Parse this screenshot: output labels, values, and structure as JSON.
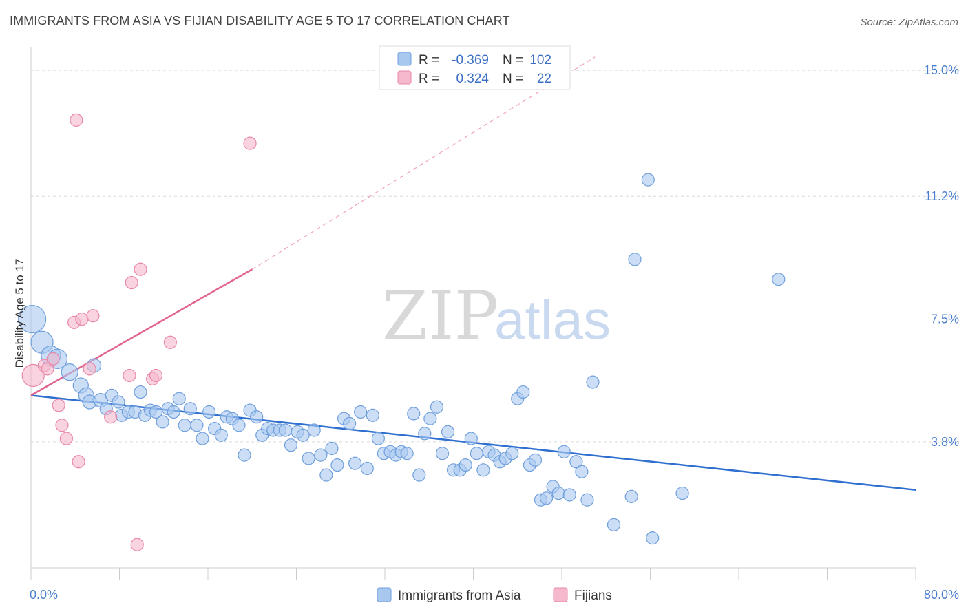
{
  "title": "IMMIGRANTS FROM ASIA VS FIJIAN DISABILITY AGE 5 TO 17 CORRELATION CHART",
  "source": "Source: ZipAtlas.com",
  "watermark": {
    "zip": "ZIP",
    "atlas": "atlas"
  },
  "legend": {
    "rows": [
      {
        "r_label": "R =",
        "r_value": "-0.369",
        "n_label": "N =",
        "n_value": "102"
      },
      {
        "r_label": "R =",
        "r_value": "0.324",
        "n_label": "N =",
        "n_value": "22"
      }
    ]
  },
  "chart_data": {
    "type": "scatter",
    "ylabel": "Disability Age 5 to 17",
    "xlim": [
      0,
      80
    ],
    "ylim": [
      0,
      15.5
    ],
    "x_tick_labels": [
      "0.0%",
      "80.0%"
    ],
    "y_ticks": [
      3.8,
      7.5,
      11.2,
      15.0
    ],
    "y_tick_labels": [
      "3.8%",
      "7.5%",
      "11.2%",
      "15.0%"
    ],
    "grid": true,
    "series": [
      {
        "name": "Immigrants from Asia",
        "color": "#a9c8f0",
        "stroke": "#6f9fdc",
        "trend": {
          "x0": 0,
          "y0": 5.2,
          "x1": 80,
          "y1": 2.35,
          "color": "#2f6fd0"
        },
        "points": [
          [
            0.1,
            7.5,
            20
          ],
          [
            1.0,
            6.8,
            16
          ],
          [
            1.8,
            6.4,
            14
          ],
          [
            2.4,
            6.3,
            14
          ],
          [
            3.5,
            5.9,
            12
          ],
          [
            4.5,
            5.5,
            11
          ],
          [
            5.0,
            5.2,
            11
          ],
          [
            5.3,
            5.0,
            10
          ],
          [
            5.7,
            6.1,
            10
          ],
          [
            6.3,
            5.05,
            10
          ],
          [
            6.8,
            4.8,
            9
          ],
          [
            7.3,
            5.2,
            9
          ],
          [
            7.9,
            5.0,
            9
          ],
          [
            8.2,
            4.6,
            9
          ],
          [
            8.8,
            4.7,
            9
          ],
          [
            9.4,
            4.7,
            9
          ],
          [
            9.9,
            5.3,
            9
          ],
          [
            10.3,
            4.6,
            9
          ],
          [
            10.8,
            4.75,
            9
          ],
          [
            11.3,
            4.7,
            9
          ],
          [
            11.9,
            4.4,
            9
          ],
          [
            12.4,
            4.8,
            9
          ],
          [
            12.9,
            4.7,
            9
          ],
          [
            13.4,
            5.1,
            9
          ],
          [
            13.9,
            4.3,
            9
          ],
          [
            14.4,
            4.8,
            9
          ],
          [
            15.0,
            4.3,
            9
          ],
          [
            15.5,
            3.9,
            9
          ],
          [
            16.1,
            4.7,
            9
          ],
          [
            16.6,
            4.2,
            9
          ],
          [
            17.2,
            4.0,
            9
          ],
          [
            17.7,
            4.55,
            9
          ],
          [
            18.2,
            4.5,
            9
          ],
          [
            18.8,
            4.3,
            9
          ],
          [
            19.3,
            3.4,
            9
          ],
          [
            19.8,
            4.75,
            9
          ],
          [
            20.4,
            4.55,
            9
          ],
          [
            20.9,
            4.0,
            9
          ],
          [
            21.4,
            4.2,
            9
          ],
          [
            21.9,
            4.15,
            9
          ],
          [
            22.5,
            4.15,
            9
          ],
          [
            23.0,
            4.15,
            9
          ],
          [
            23.5,
            3.7,
            9
          ],
          [
            24.1,
            4.1,
            9
          ],
          [
            24.6,
            4.0,
            9
          ],
          [
            25.1,
            3.3,
            9
          ],
          [
            25.6,
            4.15,
            9
          ],
          [
            26.2,
            3.4,
            9
          ],
          [
            26.7,
            2.8,
            9
          ],
          [
            27.2,
            3.6,
            9
          ],
          [
            27.7,
            3.1,
            9
          ],
          [
            28.3,
            4.5,
            9
          ],
          [
            28.8,
            4.35,
            9
          ],
          [
            29.3,
            3.15,
            9
          ],
          [
            29.8,
            4.7,
            9
          ],
          [
            30.4,
            3.0,
            9
          ],
          [
            30.9,
            4.6,
            9
          ],
          [
            31.4,
            3.9,
            9
          ],
          [
            31.9,
            3.45,
            9
          ],
          [
            32.5,
            3.5,
            9
          ],
          [
            33.0,
            3.4,
            9
          ],
          [
            33.5,
            3.5,
            9
          ],
          [
            34.0,
            3.45,
            9
          ],
          [
            34.6,
            4.65,
            9
          ],
          [
            35.1,
            2.8,
            9
          ],
          [
            35.6,
            4.05,
            9
          ],
          [
            36.1,
            4.5,
            9
          ],
          [
            36.7,
            4.85,
            9
          ],
          [
            37.2,
            3.45,
            9
          ],
          [
            37.7,
            4.1,
            9
          ],
          [
            38.2,
            2.95,
            9
          ],
          [
            38.8,
            2.95,
            9
          ],
          [
            39.3,
            3.1,
            9
          ],
          [
            39.8,
            3.9,
            9
          ],
          [
            40.3,
            3.45,
            9
          ],
          [
            40.9,
            2.95,
            9
          ],
          [
            41.4,
            3.5,
            9
          ],
          [
            41.9,
            3.4,
            9
          ],
          [
            42.4,
            3.2,
            9
          ],
          [
            42.9,
            3.3,
            9
          ],
          [
            43.5,
            3.45,
            9
          ],
          [
            44.0,
            5.1,
            9
          ],
          [
            44.5,
            5.3,
            9
          ],
          [
            45.1,
            3.1,
            9
          ],
          [
            45.6,
            3.25,
            9
          ],
          [
            46.1,
            2.05,
            9
          ],
          [
            46.6,
            2.1,
            9
          ],
          [
            47.2,
            2.45,
            9
          ],
          [
            47.7,
            2.25,
            9
          ],
          [
            48.2,
            3.5,
            9
          ],
          [
            48.7,
            2.2,
            9
          ],
          [
            49.3,
            3.2,
            9
          ],
          [
            49.8,
            2.9,
            9
          ],
          [
            50.3,
            2.05,
            9
          ],
          [
            50.8,
            5.6,
            9
          ],
          [
            52.7,
            1.3,
            9
          ],
          [
            54.3,
            2.15,
            9
          ],
          [
            54.6,
            9.3,
            9
          ],
          [
            55.8,
            11.7,
            9
          ],
          [
            56.2,
            0.9,
            9
          ],
          [
            58.9,
            2.25,
            9
          ],
          [
            67.6,
            8.7,
            9
          ]
        ]
      },
      {
        "name": "Fijians",
        "color": "#f5b8cc",
        "stroke": "#e887a7",
        "trend": {
          "x0": 0,
          "y0": 5.2,
          "x1": 20,
          "y1": 9.0,
          "x2": 51,
          "y2": 15.4,
          "color": "#e2638f"
        },
        "points": [
          [
            0.2,
            5.8,
            16
          ],
          [
            1.2,
            6.1,
            9
          ],
          [
            1.5,
            6.0,
            9
          ],
          [
            2.0,
            6.3,
            9
          ],
          [
            2.5,
            4.9,
            9
          ],
          [
            2.8,
            4.3,
            9
          ],
          [
            3.2,
            3.9,
            9
          ],
          [
            3.9,
            7.4,
            9
          ],
          [
            4.1,
            13.5,
            9
          ],
          [
            4.3,
            3.2,
            9
          ],
          [
            4.6,
            7.5,
            9
          ],
          [
            5.3,
            6.0,
            9
          ],
          [
            5.6,
            7.6,
            9
          ],
          [
            7.2,
            4.55,
            9
          ],
          [
            8.9,
            5.8,
            9
          ],
          [
            9.1,
            8.6,
            9
          ],
          [
            9.6,
            0.7,
            9
          ],
          [
            9.9,
            9.0,
            9
          ],
          [
            11.0,
            5.7,
            9
          ],
          [
            11.3,
            5.8,
            9
          ],
          [
            12.6,
            6.8,
            9
          ],
          [
            19.8,
            12.8,
            9
          ]
        ]
      }
    ]
  }
}
